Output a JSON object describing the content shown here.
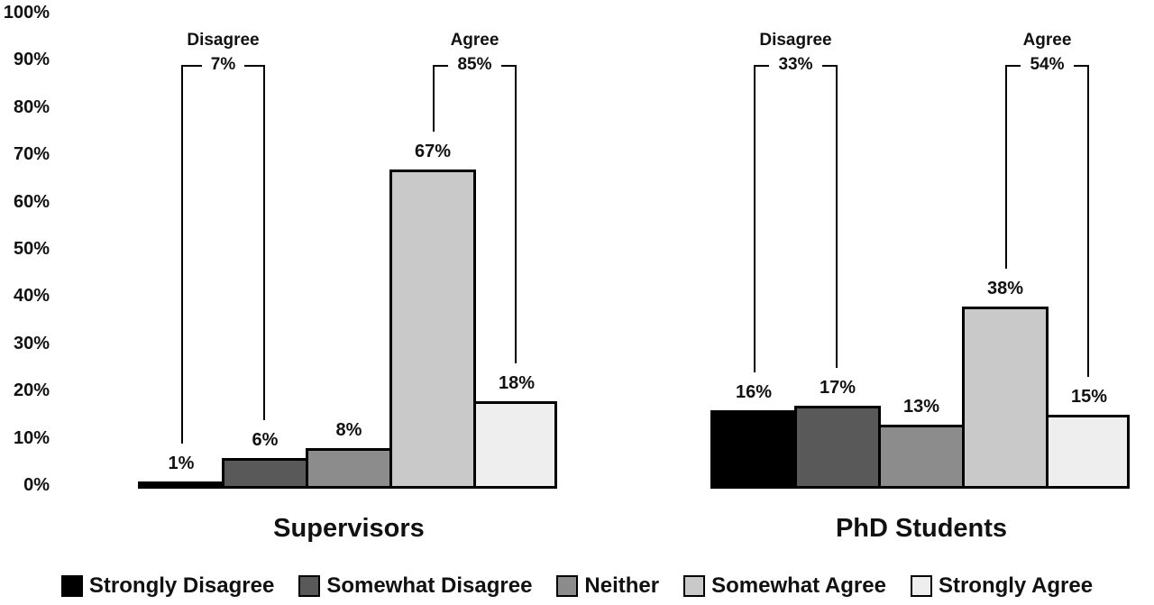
{
  "y_axis": {
    "ticks": [
      "100%",
      "90%",
      "80%",
      "70%",
      "60%",
      "50%",
      "40%",
      "30%",
      "20%",
      "10%",
      "0%"
    ]
  },
  "chart_data": {
    "type": "bar",
    "title": "",
    "xlabel": "",
    "ylabel": "",
    "ylim": [
      0,
      100
    ],
    "ytick_values": [
      0,
      10,
      20,
      30,
      40,
      50,
      60,
      70,
      80,
      90,
      100
    ],
    "grid": "off",
    "legend_position": "bottom",
    "categories": [
      "Strongly Disagree",
      "Somewhat Disagree",
      "Neither",
      "Somewhat Agree",
      "Strongly Agree"
    ],
    "colors": [
      "#000000",
      "#595959",
      "#8c8c8c",
      "#c9c9c9",
      "#eeeeee"
    ],
    "groups": [
      {
        "title": "Supervisors",
        "values": [
          1,
          6,
          8,
          67,
          18
        ],
        "value_labels": [
          "1%",
          "6%",
          "8%",
          "67%",
          "18%"
        ],
        "brackets": [
          {
            "label": "Disagree",
            "value": "7%",
            "from_bar": 0,
            "to_bar": 1
          },
          {
            "label": "Agree",
            "value": "85%",
            "from_bar": 3,
            "to_bar": 4
          }
        ]
      },
      {
        "title": "PhD Students",
        "values": [
          16,
          17,
          13,
          38,
          15
        ],
        "value_labels": [
          "16%",
          "17%",
          "13%",
          "38%",
          "15%"
        ],
        "brackets": [
          {
            "label": "Disagree",
            "value": "33%",
            "from_bar": 0,
            "to_bar": 1
          },
          {
            "label": "Agree",
            "value": "54%",
            "from_bar": 3,
            "to_bar": 4
          }
        ]
      }
    ]
  }
}
